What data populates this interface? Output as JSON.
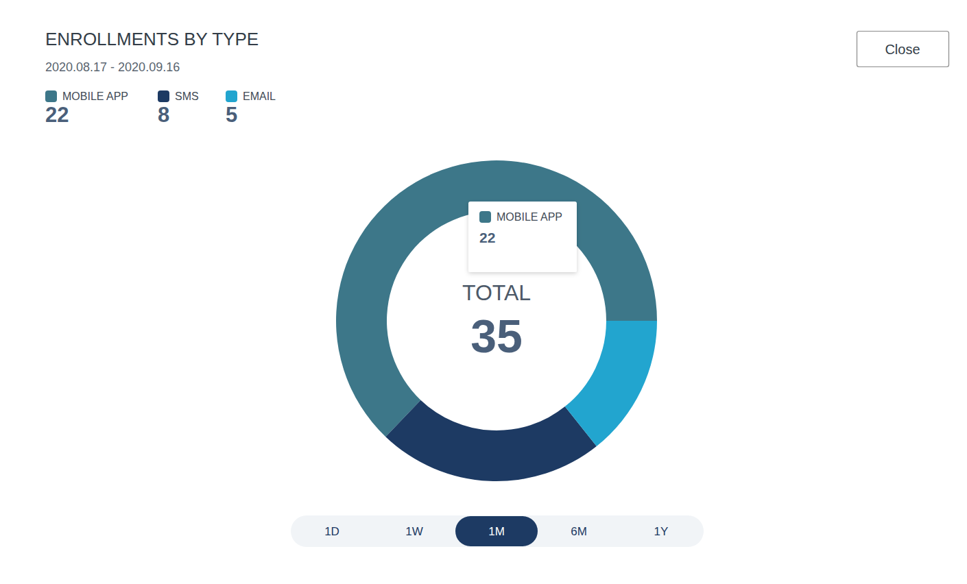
{
  "chart_data": {
    "type": "donut",
    "title": "ENROLLMENTS BY TYPE",
    "subtitle": "2020.08.17 - 2020.09.16",
    "categories": [
      "MOBILE APP",
      "SMS",
      "EMAIL"
    ],
    "values": [
      22,
      8,
      5
    ],
    "colors": [
      "#3d7789",
      "#1d3a63",
      "#22a5cf"
    ],
    "center_label": "TOTAL",
    "total": 35,
    "tooltip": {
      "label": "MOBILE APP",
      "value": 22
    },
    "legend": "top-left"
  },
  "controls": {
    "close": "Close",
    "ranges": [
      "1D",
      "1W",
      "1M",
      "6M",
      "1Y"
    ],
    "selected": "1M"
  }
}
